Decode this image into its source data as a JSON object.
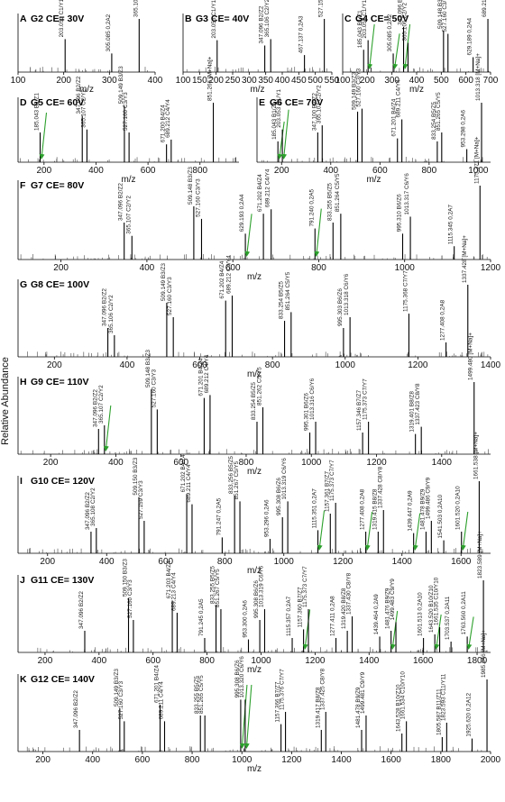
{
  "figure": {
    "y_axis_label": "Relative Abundance",
    "x_axis_label": "m/z",
    "colors": {
      "line": "#000000",
      "arrow": "#2ca02c",
      "text": "#111111"
    }
  },
  "chart_data": [
    {
      "type": "bar",
      "panel": "A",
      "title": "G2  CE= 30V",
      "xlim": [
        100,
        400
      ],
      "x_ticks": [
        100,
        200,
        300,
        400
      ],
      "peaks": [
        {
          "mz": 203.053,
          "y": 0.62,
          "label": "203.053 C1/Y1"
        },
        {
          "mz": 305.085,
          "y": 0.35,
          "label": "305.085 0,2A2"
        },
        {
          "mz": 365.106,
          "y": 1.0,
          "label": "365.106 [M+Na]+"
        }
      ]
    },
    {
      "type": "bar",
      "panel": "B",
      "title": "G3  CE= 40V",
      "xlim": [
        100,
        550
      ],
      "x_ticks": [
        100,
        150,
        200,
        250,
        300,
        350,
        400,
        450,
        500,
        550
      ],
      "peaks": [
        {
          "mz": 203.053,
          "y": 0.6,
          "label": "203.053 C1/Y1"
        },
        {
          "mz": 347.096,
          "y": 0.5,
          "label": "347.096 B2/Z2"
        },
        {
          "mz": 365.106,
          "y": 0.62,
          "label": "365.106 C2/Y2"
        },
        {
          "mz": 467.137,
          "y": 0.32,
          "label": "467.137 0,2A3"
        },
        {
          "mz": 527.159,
          "y": 1.0,
          "label": "527.159 [M+Na]+"
        }
      ]
    },
    {
      "type": "bar",
      "panel": "C",
      "title": "G4  CE= 50V",
      "xlim": [
        100,
        700
      ],
      "x_ticks": [
        100,
        200,
        300,
        400,
        500,
        600,
        700
      ],
      "peaks": [
        {
          "mz": 185.043,
          "y": 0.42,
          "label": "185.043 B1/Z1"
        },
        {
          "mz": 203.053,
          "y": 0.6,
          "label": "203.053 C1/Y1",
          "arrow": true
        },
        {
          "mz": 305.085,
          "y": 0.35,
          "label": "305.085 0,2A2",
          "arrow": true
        },
        {
          "mz": 347.096,
          "y": 0.85,
          "label": "347.096 B2/Z2",
          "arrow": true
        },
        {
          "mz": 365.106,
          "y": 0.55,
          "label": "365.106 C2/Y2"
        },
        {
          "mz": 509.148,
          "y": 0.78,
          "label": "509.148 B3/Z3"
        },
        {
          "mz": 527.16,
          "y": 0.72,
          "label": "527.160 C3/Y3"
        },
        {
          "mz": 629.189,
          "y": 0.28,
          "label": "629.189 0,2A4"
        },
        {
          "mz": 689.213,
          "y": 1.0,
          "label": "689.213 [M+Na]+"
        }
      ]
    },
    {
      "type": "bar",
      "panel": "D",
      "title": "G5  CE= 60V",
      "xlim": [
        100,
        950
      ],
      "x_ticks": [
        200,
        400,
        600,
        800
      ],
      "peaks": [
        {
          "mz": 185.043,
          "y": 0.5,
          "label": "185.043 B1/Z1",
          "arrow": true
        },
        {
          "mz": 347.096,
          "y": 0.78,
          "label": "347.096 B2/Z2"
        },
        {
          "mz": 365.107,
          "y": 0.55,
          "label": "365.107 C2/Y2"
        },
        {
          "mz": 509.149,
          "y": 0.95,
          "label": "509.149 B3/Z3"
        },
        {
          "mz": 527.16,
          "y": 0.5,
          "label": "527.160 C3/Y3"
        },
        {
          "mz": 671.2,
          "y": 0.3,
          "label": "671.200 B4/Z4"
        },
        {
          "mz": 689.212,
          "y": 0.38,
          "label": "689.212 C4/Y4"
        },
        {
          "mz": 851.266,
          "y": 1.0,
          "label": "851.266 [M+Na]+"
        }
      ]
    },
    {
      "type": "bar",
      "panel": "E",
      "title": "G6  CE= 70V",
      "xlim": [
        100,
        1050
      ],
      "x_ticks": [
        200,
        400,
        600,
        800,
        1000
      ],
      "peaks": [
        {
          "mz": 185.043,
          "y": 0.35,
          "label": "185.043 B1/Z1",
          "arrow": true
        },
        {
          "mz": 203.053,
          "y": 0.55,
          "label": "203.053 C1/Y1",
          "arrow": true
        },
        {
          "mz": 347.1,
          "y": 0.5,
          "label": "347.100 B2/Z2"
        },
        {
          "mz": 365.107,
          "y": 0.62,
          "label": "365.107 C2/Y2"
        },
        {
          "mz": 509.149,
          "y": 0.85,
          "label": "509.149 B3/Z3"
        },
        {
          "mz": 527.16,
          "y": 0.9,
          "label": "527.160 C3/Y3"
        },
        {
          "mz": 671.201,
          "y": 0.4,
          "label": "671.201 B4/Z4"
        },
        {
          "mz": 689.211,
          "y": 0.72,
          "label": "689.211 C4/Y4"
        },
        {
          "mz": 833.254,
          "y": 0.35,
          "label": "833.254 B5/Z5"
        },
        {
          "mz": 851.265,
          "y": 0.5,
          "label": "851.265 C5/Y5"
        },
        {
          "mz": 953.298,
          "y": 0.22,
          "label": "953.298 0,2A6"
        },
        {
          "mz": 1013.318,
          "y": 1.0,
          "label": "1013.318 [M+Na]+"
        }
      ]
    },
    {
      "type": "bar",
      "panel": "F",
      "title": "G7  CE= 80V",
      "xlim": [
        100,
        1200
      ],
      "x_ticks": [
        200,
        400,
        600,
        800,
        1000,
        1200
      ],
      "peaks": [
        {
          "mz": 347.096,
          "y": 0.5,
          "label": "347.096 B2/Z2"
        },
        {
          "mz": 365.107,
          "y": 0.32,
          "label": "365.107 C2/Y2"
        },
        {
          "mz": 509.148,
          "y": 0.72,
          "label": "509.148 B3/Z3"
        },
        {
          "mz": 527.16,
          "y": 0.55,
          "label": "527.160 C3/Y3"
        },
        {
          "mz": 629.193,
          "y": 0.35,
          "label": "629.193 0,2A4",
          "arrow": true
        },
        {
          "mz": 671.202,
          "y": 0.62,
          "label": "671.202 B4/Z4"
        },
        {
          "mz": 689.212,
          "y": 0.68,
          "label": "689.212 C4/Y4"
        },
        {
          "mz": 791.24,
          "y": 0.42,
          "label": "791.240 0,2A5",
          "arrow": true
        },
        {
          "mz": 833.255,
          "y": 0.5,
          "label": "833.255 B5/Z5"
        },
        {
          "mz": 851.264,
          "y": 0.62,
          "label": "851.264 C5/Y5"
        },
        {
          "mz": 995.31,
          "y": 0.35,
          "label": "995.310 B6/Z6"
        },
        {
          "mz": 1013.317,
          "y": 0.58,
          "label": "1013.317 C6/Y6"
        },
        {
          "mz": 1115.345,
          "y": 0.18,
          "label": "1115.345 0,2A7"
        },
        {
          "mz": 1175.371,
          "y": 1.0,
          "label": "1175.371 [M+Na]+"
        }
      ]
    },
    {
      "type": "bar",
      "panel": "G",
      "title": "G8  CE= 100V",
      "xlim": [
        100,
        1400
      ],
      "x_ticks": [
        200,
        400,
        600,
        800,
        1000,
        1200,
        1400
      ],
      "peaks": [
        {
          "mz": 347.096,
          "y": 0.4,
          "label": "347.096 B2/Z2"
        },
        {
          "mz": 365.106,
          "y": 0.3,
          "label": "365.106 C2/Y2"
        },
        {
          "mz": 509.149,
          "y": 0.75,
          "label": "509.149 B3/Z3"
        },
        {
          "mz": 527.16,
          "y": 0.55,
          "label": "527.160 C3/Y3"
        },
        {
          "mz": 671.202,
          "y": 0.78,
          "label": "671.202 B4/Z4"
        },
        {
          "mz": 689.212,
          "y": 0.85,
          "label": "689.212 C4/Y4"
        },
        {
          "mz": 833.254,
          "y": 0.5,
          "label": "833.254 B5/Z5"
        },
        {
          "mz": 851.264,
          "y": 0.62,
          "label": "851.264 C5/Y5"
        },
        {
          "mz": 995.303,
          "y": 0.4,
          "label": "995.303 B6/Z6"
        },
        {
          "mz": 1013.318,
          "y": 0.55,
          "label": "1013.318 C6/Y6"
        },
        {
          "mz": 1175.368,
          "y": 0.6,
          "label": "1175.368 C7/Y7"
        },
        {
          "mz": 1277.408,
          "y": 0.2,
          "label": "1277.408 0,2A8"
        },
        {
          "mz": 1337.428,
          "y": 1.0,
          "label": "1337.428 [M+Na]+"
        }
      ]
    },
    {
      "type": "bar",
      "panel": "H",
      "title": "G9  CE= 110V",
      "xlim": [
        100,
        1550
      ],
      "x_ticks": [
        200,
        400,
        600,
        800,
        1000,
        1200,
        1400
      ],
      "peaks": [
        {
          "mz": 347.096,
          "y": 0.35,
          "label": "347.096 B2/Z2"
        },
        {
          "mz": 365.107,
          "y": 0.4,
          "label": "365.107 C2/Y2",
          "arrow": true
        },
        {
          "mz": 509.148,
          "y": 0.9,
          "label": "509.148 B3/Z3"
        },
        {
          "mz": 527.16,
          "y": 0.62,
          "label": "527.160 C3/Y3"
        },
        {
          "mz": 671.201,
          "y": 0.78,
          "label": "671.201 B4/Z4"
        },
        {
          "mz": 689.212,
          "y": 0.82,
          "label": "689.212 C4/Y4"
        },
        {
          "mz": 833.254,
          "y": 0.45,
          "label": "833.254 B5/Z5"
        },
        {
          "mz": 851.262,
          "y": 0.65,
          "label": "851.262 C5/Y5"
        },
        {
          "mz": 995.301,
          "y": 0.3,
          "label": "995.301 B6/Z6"
        },
        {
          "mz": 1013.316,
          "y": 0.45,
          "label": "1013.316 C6/Y6"
        },
        {
          "mz": 1157.346,
          "y": 0.3,
          "label": "1157.346 B7/Z7"
        },
        {
          "mz": 1175.373,
          "y": 0.45,
          "label": "1175.373 C7/Y7"
        },
        {
          "mz": 1319.401,
          "y": 0.28,
          "label": "1319.401 B8/Z8"
        },
        {
          "mz": 1337.423,
          "y": 0.38,
          "label": "1337.423 C8/Y8"
        },
        {
          "mz": 1499.48,
          "y": 1.0,
          "label": "1499.480 [M+Na]+"
        }
      ]
    },
    {
      "type": "bar",
      "panel": "I",
      "title": "G10  CE= 120V",
      "xlim": [
        100,
        1700
      ],
      "x_ticks": [
        200,
        400,
        600,
        800,
        1000,
        1200,
        1400,
        1600
      ],
      "peaks": [
        {
          "mz": 347.096,
          "y": 0.3,
          "label": "347.096 B2/Z2"
        },
        {
          "mz": 365.108,
          "y": 0.35,
          "label": "365.108 C2/Y2"
        },
        {
          "mz": 509.15,
          "y": 0.78,
          "label": "509.150 B3/Z3"
        },
        {
          "mz": 527.159,
          "y": 0.45,
          "label": "527.159 C3/Y3"
        },
        {
          "mz": 671.202,
          "y": 0.82,
          "label": "671.202 B4/Z4"
        },
        {
          "mz": 689.211,
          "y": 0.68,
          "label": "689.211 C4/Y4"
        },
        {
          "mz": 791.247,
          "y": 0.22,
          "label": "791.247 0,2A5"
        },
        {
          "mz": 833.256,
          "y": 0.8,
          "label": "833.256 B5/Z5"
        },
        {
          "mz": 851.267,
          "y": 0.72,
          "label": "851.267 C5/Y5"
        },
        {
          "mz": 953.296,
          "y": 0.2,
          "label": "953.296 0,2A6"
        },
        {
          "mz": 995.308,
          "y": 0.5,
          "label": "995.308 B6/Z6"
        },
        {
          "mz": 1013.319,
          "y": 0.72,
          "label": "1013.319 C6/Y6"
        },
        {
          "mz": 1115.351,
          "y": 0.32,
          "label": "1115.351 0,2A7",
          "arrow": true
        },
        {
          "mz": 1157.361,
          "y": 0.55,
          "label": "1157.361 B7/Z7"
        },
        {
          "mz": 1175.373,
          "y": 0.7,
          "label": "1175.373 C7/Y7"
        },
        {
          "mz": 1277.408,
          "y": 0.3,
          "label": "1277.408 0,2A8",
          "arrow": true
        },
        {
          "mz": 1319.415,
          "y": 0.3,
          "label": "1319.415 B8/Z8"
        },
        {
          "mz": 1337.428,
          "y": 0.6,
          "label": "1337.428 C8/Y8"
        },
        {
          "mz": 1439.447,
          "y": 0.28,
          "label": "1439.447 0,2A9",
          "arrow": true
        },
        {
          "mz": 1481.478,
          "y": 0.3,
          "label": "1481.478 B9/Z9"
        },
        {
          "mz": 1499.486,
          "y": 0.45,
          "label": "1499.486 C9/Y9"
        },
        {
          "mz": 1541.503,
          "y": 0.18,
          "label": "1541.503 0,2A10"
        },
        {
          "mz": 1601.52,
          "y": 0.3,
          "label": "1601.520 0,2A10",
          "arrow": true
        },
        {
          "mz": 1661.538,
          "y": 1.0,
          "label": "1661.538 [M+Na]+"
        }
      ]
    },
    {
      "type": "bar",
      "panel": "J",
      "title": "G11  CE= 130V",
      "xlim": [
        100,
        1850
      ],
      "x_ticks": [
        200,
        400,
        600,
        800,
        1000,
        1200,
        1400,
        1600,
        1800
      ],
      "peaks": [
        {
          "mz": 347.096,
          "y": 0.3,
          "label": "347.096 B2/Z2"
        },
        {
          "mz": 509.15,
          "y": 0.75,
          "label": "509.150 B3/Z3"
        },
        {
          "mz": 527.16,
          "y": 0.45,
          "label": "527.160 C3/Y3"
        },
        {
          "mz": 671.203,
          "y": 0.72,
          "label": "671.203 B4/Z4"
        },
        {
          "mz": 689.213,
          "y": 0.55,
          "label": "689.213 C4/Y4"
        },
        {
          "mz": 791.245,
          "y": 0.2,
          "label": "791.245 0,2A5"
        },
        {
          "mz": 833.255,
          "y": 0.65,
          "label": "833.255 B5/Z5"
        },
        {
          "mz": 851.267,
          "y": 0.6,
          "label": "851.267 C5/Y5"
        },
        {
          "mz": 953.3,
          "y": 0.18,
          "label": "953.300 0,2A6"
        },
        {
          "mz": 995.308,
          "y": 0.45,
          "label": "995.308 B6/Z6"
        },
        {
          "mz": 1013.319,
          "y": 0.6,
          "label": "1013.319 C6/Y6"
        },
        {
          "mz": 1115.357,
          "y": 0.2,
          "label": "1115.357 0,2A7"
        },
        {
          "mz": 1157.36,
          "y": 0.32,
          "label": "1157.360 B7/Z7",
          "arrow": true
        },
        {
          "mz": 1175.373,
          "y": 0.6,
          "label": "1175.373 C7/Y7"
        },
        {
          "mz": 1277.411,
          "y": 0.2,
          "label": "1277.411 0,2A8"
        },
        {
          "mz": 1319.42,
          "y": 0.3,
          "label": "1319.420 B8/Z8"
        },
        {
          "mz": 1337.43,
          "y": 0.5,
          "label": "1337.430 C8/Y8"
        },
        {
          "mz": 1439.464,
          "y": 0.22,
          "label": "1439.464 0,2A9"
        },
        {
          "mz": 1481.476,
          "y": 0.3,
          "label": "1481.476 B9/Z9",
          "arrow": true
        },
        {
          "mz": 1499.483,
          "y": 0.42,
          "label": "1499.483 C9/Y9"
        },
        {
          "mz": 1601.513,
          "y": 0.2,
          "label": "1601.513 0,2A10"
        },
        {
          "mz": 1643.52,
          "y": 0.25,
          "label": "1643.520 B10/Z10",
          "arrow": true
        },
        {
          "mz": 1661.535,
          "y": 0.35,
          "label": "1661.535 C10/Y10"
        },
        {
          "mz": 1703.537,
          "y": 0.15,
          "label": "1703.537 0,2A11"
        },
        {
          "mz": 1763.56,
          "y": 0.22,
          "label": "1763.560 0,2A11",
          "arrow": true
        },
        {
          "mz": 1823.589,
          "y": 1.0,
          "label": "1823.589 [M+Na]+"
        }
      ]
    },
    {
      "type": "bar",
      "panel": "K",
      "title": "G12  CE= 140V",
      "xlim": [
        100,
        2000
      ],
      "x_ticks": [
        200,
        400,
        600,
        800,
        1000,
        1200,
        1400,
        1600,
        1800,
        2000
      ],
      "peaks": [
        {
          "mz": 347.096,
          "y": 0.3,
          "label": "347.096 B2/Z2"
        },
        {
          "mz": 509.149,
          "y": 0.6,
          "label": "509.149 B3/Z3"
        },
        {
          "mz": 527.16,
          "y": 0.42,
          "label": "527.160 C3/Y3"
        },
        {
          "mz": 671.201,
          "y": 0.65,
          "label": "671.201 B4/Z4"
        },
        {
          "mz": 689.211,
          "y": 0.42,
          "label": "689.211 C4/Y4"
        },
        {
          "mz": 833.255,
          "y": 0.5,
          "label": "833.255 B5/Z5"
        },
        {
          "mz": 851.265,
          "y": 0.5,
          "label": "851.265 C5/Y5"
        },
        {
          "mz": 995.308,
          "y": 0.72,
          "label": "995.308 B6/Z6",
          "arrow": true
        },
        {
          "mz": 1013.32,
          "y": 0.72,
          "label": "1013.320 C6/Y6",
          "arrow": true
        },
        {
          "mz": 1157.366,
          "y": 0.38,
          "label": "1157.366 B7/Z7"
        },
        {
          "mz": 1175.376,
          "y": 0.55,
          "label": "1175.376 C7/Y7"
        },
        {
          "mz": 1319.417,
          "y": 0.3,
          "label": "1319.417 B8/Z8"
        },
        {
          "mz": 1337.425,
          "y": 0.55,
          "label": "1337.425 C8/Y8"
        },
        {
          "mz": 1481.478,
          "y": 0.3,
          "label": "1481.478 B9/Z9"
        },
        {
          "mz": 1499.481,
          "y": 0.5,
          "label": "1499.481 C9/Y9"
        },
        {
          "mz": 1643.528,
          "y": 0.25,
          "label": "1643.528 B10/Z10"
        },
        {
          "mz": 1661.534,
          "y": 0.42,
          "label": "1661.534 C10/Y10"
        },
        {
          "mz": 1805.587,
          "y": 0.2,
          "label": "1805.587 B11/Z11"
        },
        {
          "mz": 1823.593,
          "y": 0.4,
          "label": "1823.593 C11/Y11"
        },
        {
          "mz": 1925.62,
          "y": 0.18,
          "label": "1925.620 0,2A12"
        },
        {
          "mz": 1985.646,
          "y": 1.0,
          "label": "1985.646 [M+Na]+"
        }
      ]
    }
  ]
}
